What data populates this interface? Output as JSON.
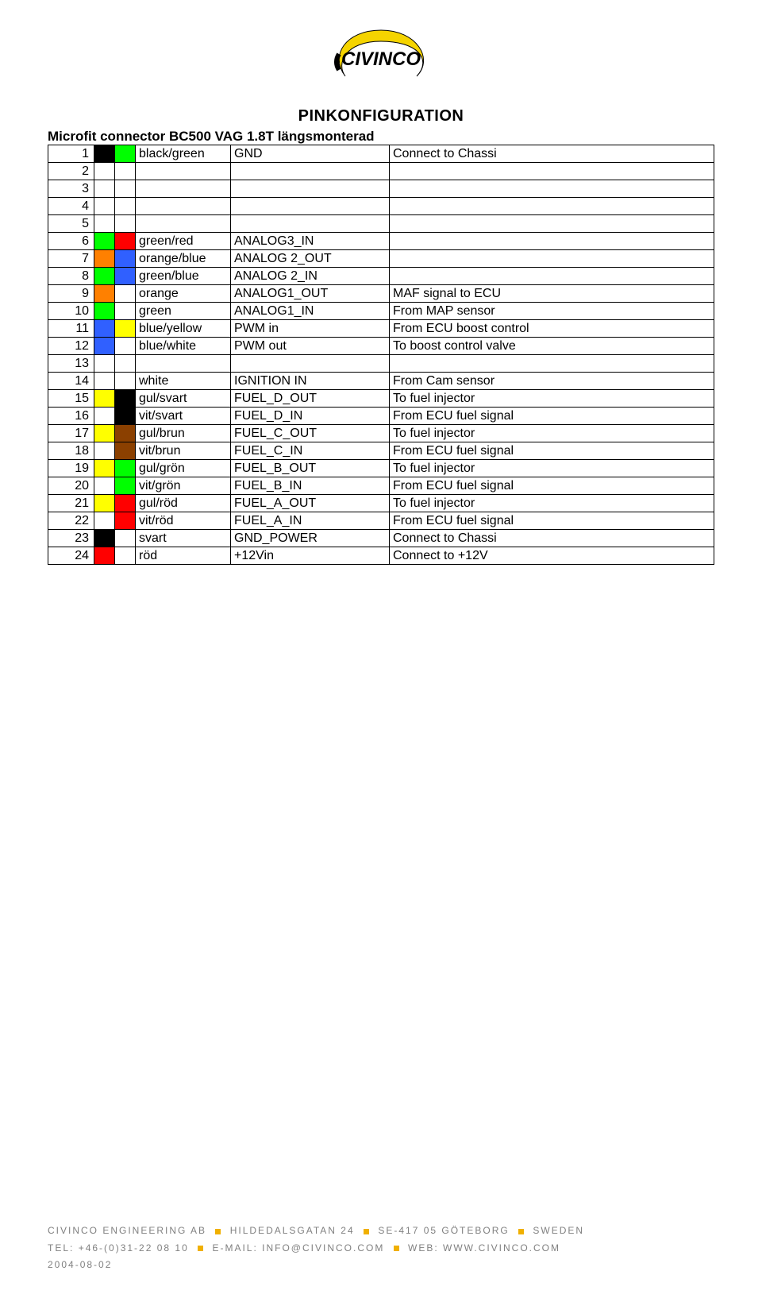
{
  "logo": {
    "name": "CIVINCO"
  },
  "title": "PINKONFIGURATION",
  "subtitle": "Microfit connector BC500 VAG 1.8T längsmonterad",
  "colors": {
    "black": "#000000",
    "green": "#00ff00",
    "red": "#ff0000",
    "orange": "#ff8000",
    "blue": "#3060ff",
    "yellow": "#ffff00",
    "white": "#ffffff",
    "brown": "#8b4000"
  },
  "rows": [
    {
      "n": "1",
      "c1": "black",
      "c2": "green",
      "wire": "black/green",
      "sig": "GND",
      "desc": "Connect to Chassi"
    },
    {
      "n": "2",
      "c1": "",
      "c2": "",
      "wire": "",
      "sig": "",
      "desc": ""
    },
    {
      "n": "3",
      "c1": "",
      "c2": "",
      "wire": "",
      "sig": "",
      "desc": ""
    },
    {
      "n": "4",
      "c1": "",
      "c2": "",
      "wire": "",
      "sig": "",
      "desc": ""
    },
    {
      "n": "5",
      "c1": "",
      "c2": "",
      "wire": "",
      "sig": "",
      "desc": ""
    },
    {
      "n": "6",
      "c1": "green",
      "c2": "red",
      "wire": "green/red",
      "sig": "ANALOG3_IN",
      "desc": ""
    },
    {
      "n": "7",
      "c1": "orange",
      "c2": "blue",
      "wire": "orange/blue",
      "sig": "ANALOG 2_OUT",
      "desc": ""
    },
    {
      "n": "8",
      "c1": "green",
      "c2": "blue",
      "wire": "green/blue",
      "sig": "ANALOG 2_IN",
      "desc": ""
    },
    {
      "n": "9",
      "c1": "orange",
      "c2": "",
      "wire": "orange",
      "sig": "ANALOG1_OUT",
      "desc": "MAF signal to ECU"
    },
    {
      "n": "10",
      "c1": "green",
      "c2": "",
      "wire": "green",
      "sig": "ANALOG1_IN",
      "desc": "From MAP sensor"
    },
    {
      "n": "11",
      "c1": "blue",
      "c2": "yellow",
      "wire": "blue/yellow",
      "sig": "PWM in",
      "desc": "From ECU boost control"
    },
    {
      "n": "12",
      "c1": "blue",
      "c2": "white",
      "wire": "blue/white",
      "sig": "PWM out",
      "desc": "To boost control valve"
    },
    {
      "n": "13",
      "c1": "",
      "c2": "",
      "wire": "",
      "sig": "",
      "desc": ""
    },
    {
      "n": "14",
      "c1": "white",
      "c2": "",
      "wire": "white",
      "sig": "IGNITION IN",
      "desc": "From Cam sensor"
    },
    {
      "n": "15",
      "c1": "yellow",
      "c2": "black",
      "wire": "gul/svart",
      "sig": "FUEL_D_OUT",
      "desc": "To fuel injector"
    },
    {
      "n": "16",
      "c1": "white",
      "c2": "black",
      "wire": "vit/svart",
      "sig": "FUEL_D_IN",
      "desc": "From ECU fuel signal"
    },
    {
      "n": "17",
      "c1": "yellow",
      "c2": "brown",
      "wire": "gul/brun",
      "sig": "FUEL_C_OUT",
      "desc": "To fuel injector"
    },
    {
      "n": "18",
      "c1": "white",
      "c2": "brown",
      "wire": "vit/brun",
      "sig": "FUEL_C_IN",
      "desc": "From ECU fuel signal"
    },
    {
      "n": "19",
      "c1": "yellow",
      "c2": "green",
      "wire": "gul/grön",
      "sig": "FUEL_B_OUT",
      "desc": "To fuel injector"
    },
    {
      "n": "20",
      "c1": "white",
      "c2": "green",
      "wire": "vit/grön",
      "sig": "FUEL_B_IN",
      "desc": "From ECU fuel signal"
    },
    {
      "n": "21",
      "c1": "yellow",
      "c2": "red",
      "wire": "gul/röd",
      "sig": "FUEL_A_OUT",
      "desc": "To fuel injector"
    },
    {
      "n": "22",
      "c1": "white",
      "c2": "red",
      "wire": "vit/röd",
      "sig": "FUEL_A_IN",
      "desc": "From ECU fuel signal"
    },
    {
      "n": "23",
      "c1": "black",
      "c2": "",
      "wire": "svart",
      "sig": "GND_POWER",
      "desc": "Connect to Chassi"
    },
    {
      "n": "24",
      "c1": "red",
      "c2": "",
      "wire": "röd",
      "sig": "+12Vin",
      "desc": "Connect to +12V"
    }
  ],
  "footer": {
    "line1_parts": [
      "CIVINCO ENGINEERING AB",
      "HILDEDALSGATAN 24",
      "SE-417 05 GÖTEBORG",
      "SWEDEN"
    ],
    "line2_tel_label": "TEL:",
    "line2_tel": "+46-(0)31-22 08 10",
    "line2_email_label": "E-MAIL:",
    "line2_email": "INFO@CIVINCO.COM",
    "line2_web_label": "WEB:",
    "line2_web": "WWW.CIVINCO.COM",
    "date": "2004-08-02"
  }
}
